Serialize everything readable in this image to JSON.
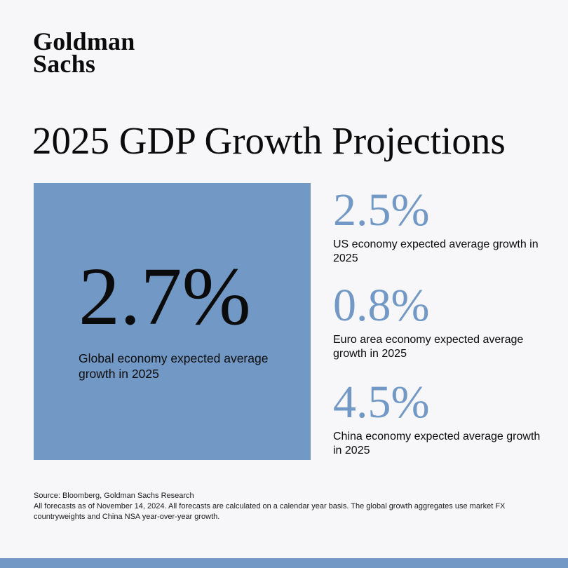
{
  "brand": {
    "line1": "Goldman",
    "line2": "Sachs"
  },
  "title": "2025 GDP Growth Projections",
  "global": {
    "value": "2.7%",
    "label": "Global economy expected average growth in 2025"
  },
  "regions": [
    {
      "value": "2.5%",
      "label": "US economy expected average growth in 2025"
    },
    {
      "value": "0.8%",
      "label": "Euro area economy expected average growth in 2025"
    },
    {
      "value": "4.5%",
      "label": "China economy expected average growth in 2025"
    }
  ],
  "footer": {
    "source": "Source: Bloomberg, Goldman Sachs Research",
    "note": "All forecasts as of November 14, 2024. All forecasts are calculated on a calendar year basis. The global growth aggregates use market FX countryweights and China NSA year-over-year growth."
  },
  "colors": {
    "accent": "#7299c6",
    "background": "#f7f7f9",
    "text": "#0b0b0b"
  }
}
